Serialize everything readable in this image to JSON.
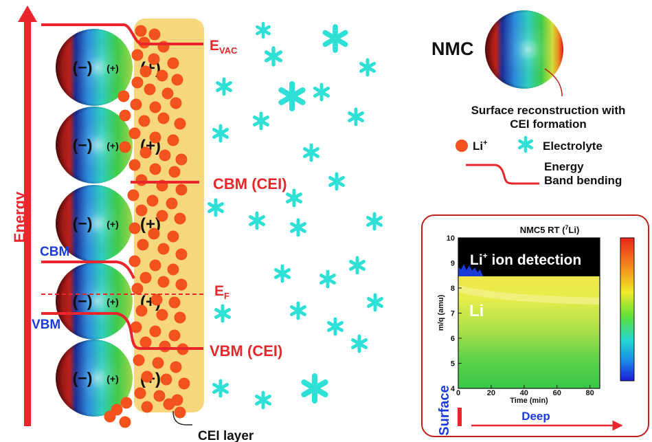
{
  "axis_label": "Energy",
  "energy_levels": {
    "evac": {
      "main": "E",
      "sub": "VAC"
    },
    "ef": {
      "main": "E",
      "sub": "F"
    },
    "cbm_cei": "CBM (CEI)",
    "vbm_cei": "VBM (CEI)",
    "cbm": "CBM",
    "vbm": "VBM"
  },
  "particle_charges": {
    "minus": "(−)",
    "plus_small": "(+)",
    "plus": "(+)"
  },
  "cei_layer_label": "CEI layer",
  "legend": {
    "nmc_label": "NMC",
    "surface_caption_line1": "Surface reconstruction with",
    "surface_caption_line2": "CEI formation",
    "li_label": "Li",
    "li_superscript": "+",
    "electrolyte_label": "Electrolyte",
    "band_label_line1": "Energy",
    "band_label_line2": "Band bending"
  },
  "inset": {
    "title_main": "NMC5 RT (",
    "title_sup": "7",
    "title_end": "Li)",
    "detection_label_main": "Li",
    "detection_label_sup": "+",
    "detection_label_end": " ion detection",
    "li_region_label": "Li",
    "ylabel": "m/q (amu)",
    "xlabel": "Time (min)",
    "yticks": [
      "4",
      "5",
      "6",
      "7",
      "8",
      "9",
      "10"
    ],
    "xticks": [
      "0",
      "20",
      "40",
      "60",
      "80"
    ],
    "surface_label": "Surface",
    "deep_label": "Deep"
  },
  "colors": {
    "red": "#e8262b",
    "blue": "#1a3be0",
    "orange": "#f2521b",
    "cyan": "#2fe0d6",
    "cei_fill": "#f6d77e"
  }
}
